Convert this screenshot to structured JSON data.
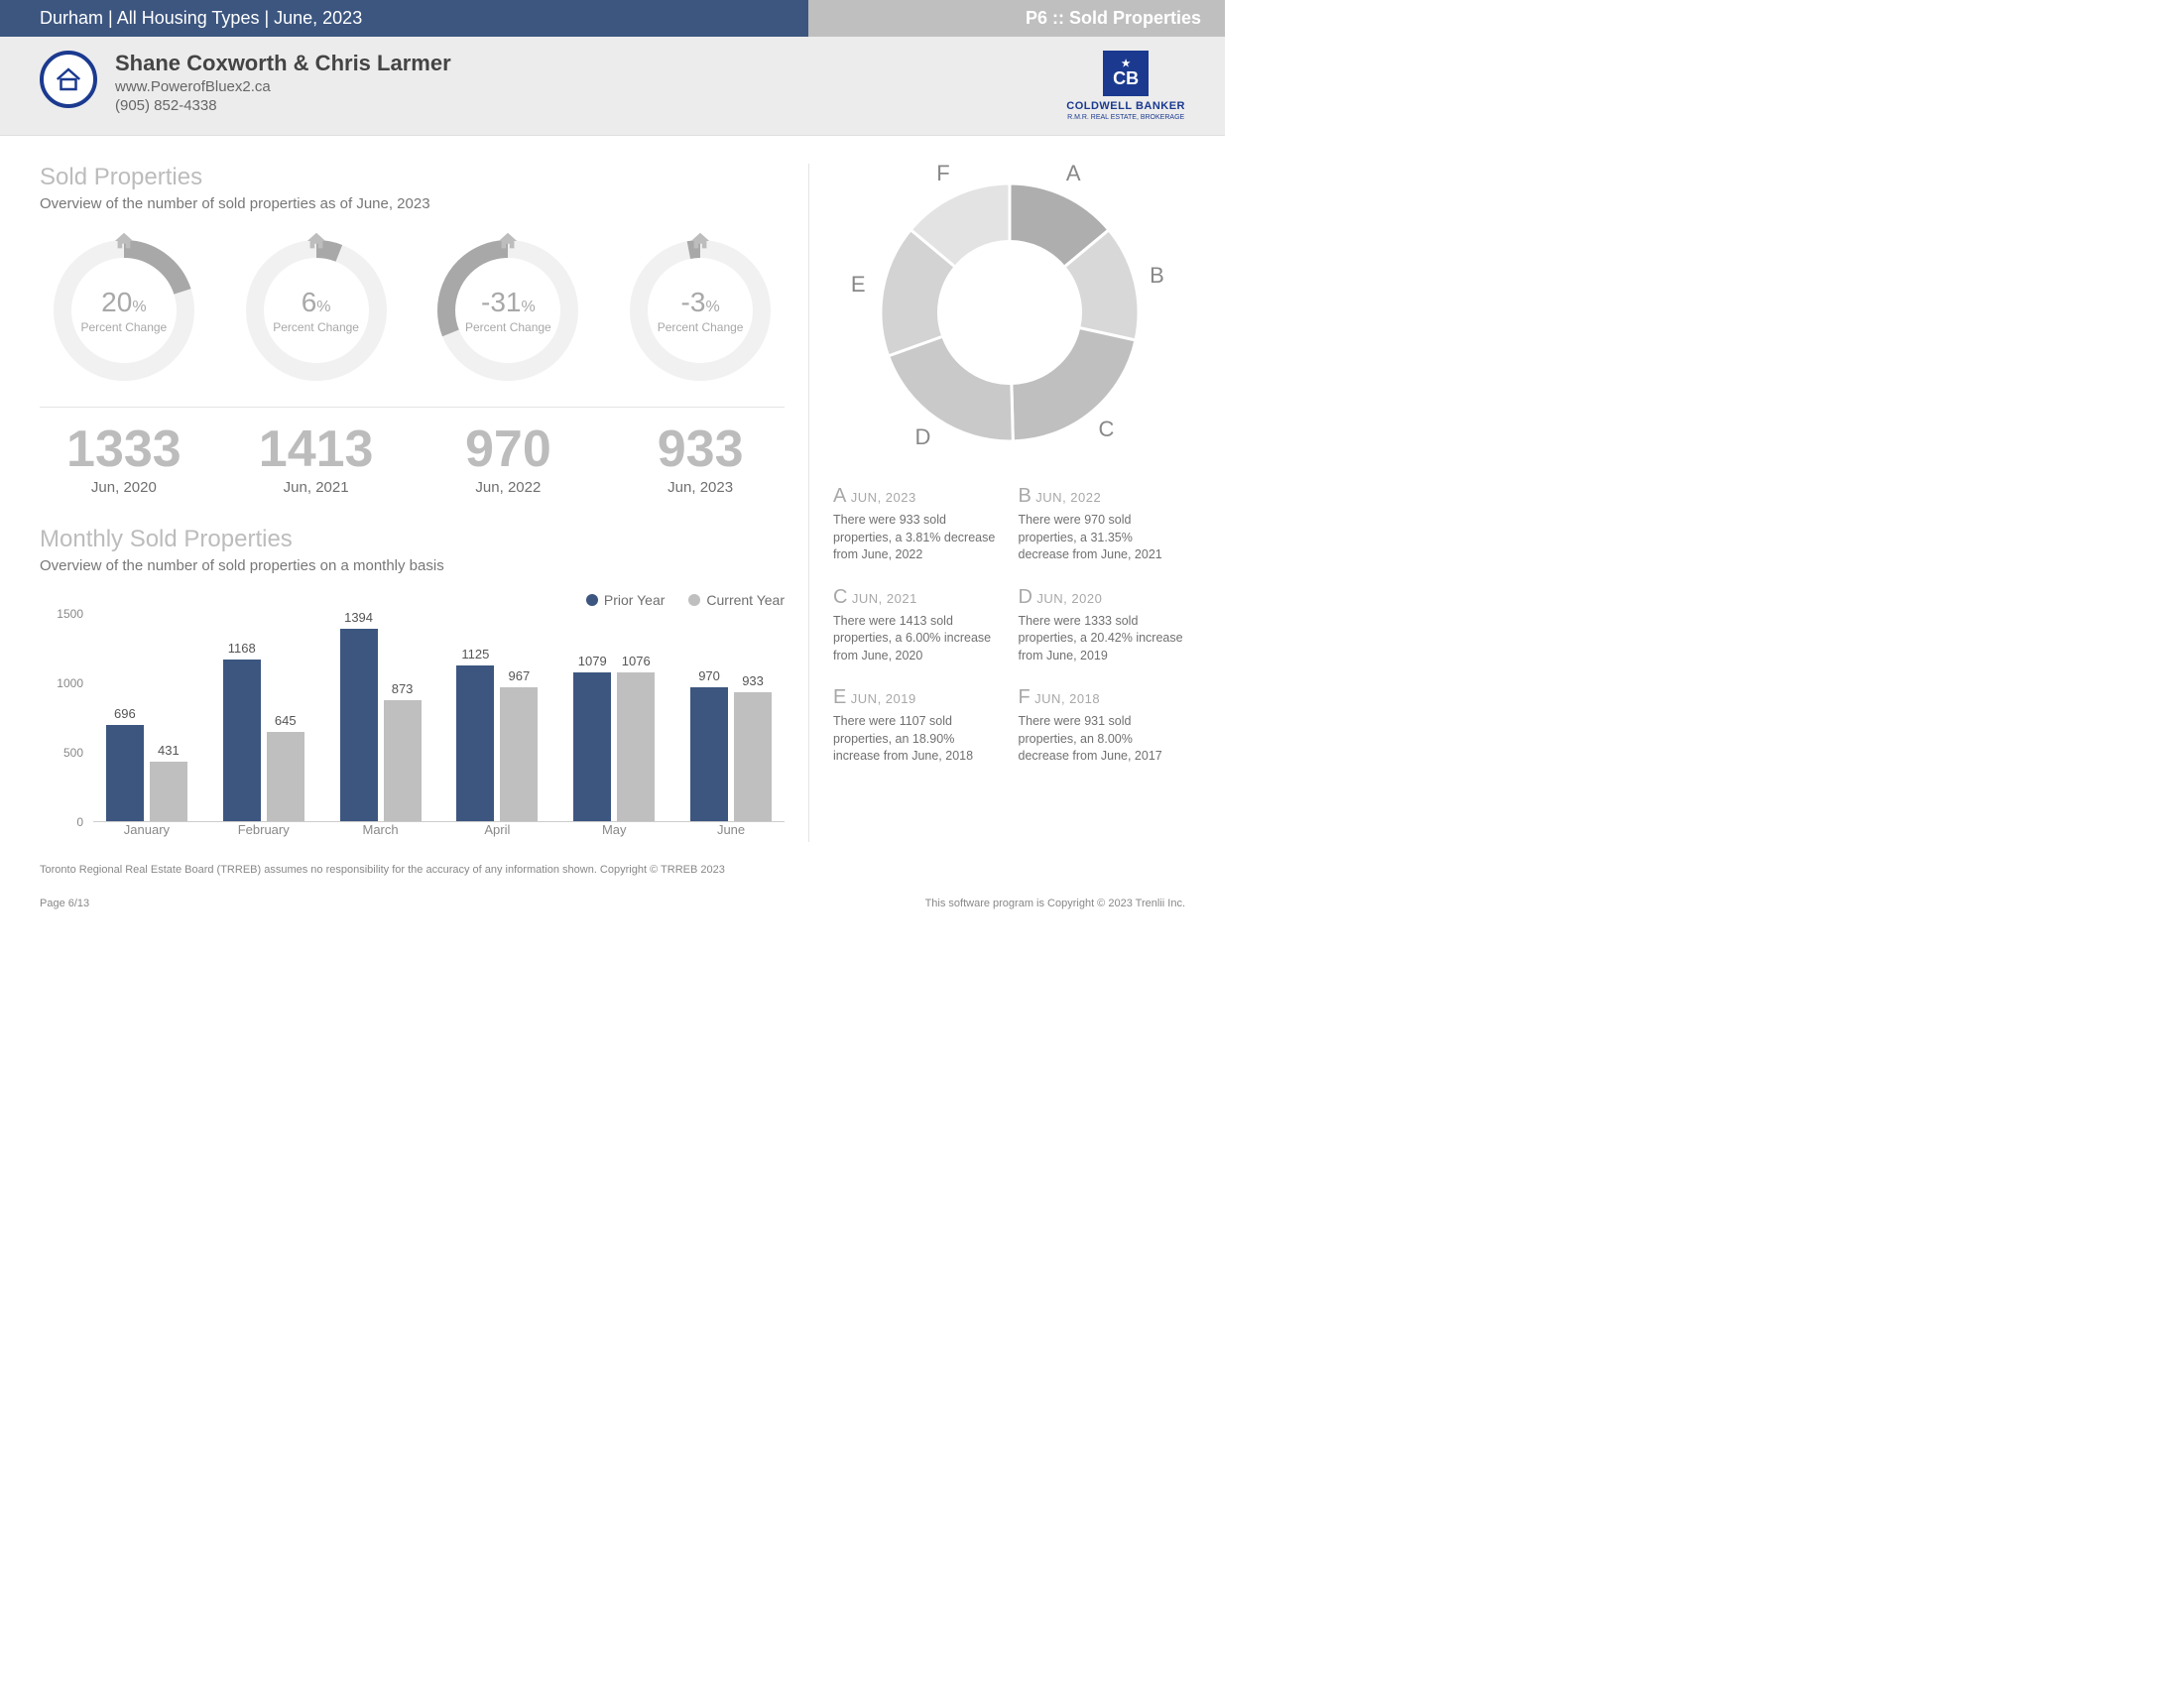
{
  "top": {
    "left": "Durham | All Housing Types | June, 2023",
    "right": "P6 :: Sold Properties"
  },
  "agent": {
    "name": "Shane Coxworth & Chris Larmer",
    "url": "www.PowerofBluex2.ca",
    "phone": "(905) 852-4338"
  },
  "brand": {
    "name": "COLDWELL BANKER",
    "sub": "R.M.R. REAL ESTATE, BROKERAGE"
  },
  "section1": {
    "title": "Sold Properties",
    "sub": "Overview of the number of sold properties as of June, 2023",
    "gauges": [
      {
        "pct": "20",
        "label": "Percent Change",
        "count": "1333",
        "date": "Jun, 2020",
        "frac": 0.2,
        "neg": false
      },
      {
        "pct": "6",
        "label": "Percent Change",
        "count": "1413",
        "date": "Jun, 2021",
        "frac": 0.06,
        "neg": false
      },
      {
        "pct": "-31",
        "label": "Percent Change",
        "count": "970",
        "date": "Jun, 2022",
        "frac": 0.31,
        "neg": true
      },
      {
        "pct": "-3",
        "label": "Percent Change",
        "count": "933",
        "date": "Jun, 2023",
        "frac": 0.03,
        "neg": true
      }
    ],
    "gauge_track": "#f1f1f1",
    "gauge_fill": "#a8a8a8"
  },
  "section2": {
    "title": "Monthly Sold Properties",
    "sub": "Overview of the number of sold properties on a monthly basis",
    "legend": {
      "prior": {
        "label": "Prior Year",
        "color": "#3c5680"
      },
      "current": {
        "label": "Current Year",
        "color": "#bfbfbf"
      }
    },
    "ymax": 1500,
    "yticks": [
      0,
      500,
      1000,
      1500
    ],
    "months": [
      "January",
      "February",
      "March",
      "April",
      "May",
      "June"
    ],
    "prior": [
      696,
      1168,
      1394,
      1125,
      1079,
      970
    ],
    "current": [
      431,
      645,
      873,
      967,
      1076,
      933
    ]
  },
  "donut": {
    "colors": {
      "A": "#aeaeae",
      "B": "#d8d8d8",
      "C": "#bfbfbf",
      "D": "#c9c9c9",
      "E": "#d3d3d3",
      "F": "#e3e3e3"
    },
    "slices": [
      {
        "letter": "A",
        "value": 933
      },
      {
        "letter": "B",
        "value": 970
      },
      {
        "letter": "C",
        "value": 1413
      },
      {
        "letter": "D",
        "value": 1333
      },
      {
        "letter": "E",
        "value": 1107
      },
      {
        "letter": "F",
        "value": 931
      }
    ],
    "hole": 0.55,
    "divider": "#ffffff"
  },
  "yearGrid": [
    {
      "letter": "A",
      "date": "JUN, 2023",
      "body": "There were 933 sold properties, a 3.81% decrease from June, 2022"
    },
    {
      "letter": "B",
      "date": "JUN, 2022",
      "body": "There were 970 sold properties, a 31.35% decrease from June, 2021"
    },
    {
      "letter": "C",
      "date": "JUN, 2021",
      "body": "There were 1413 sold properties, a 6.00% increase from June, 2020"
    },
    {
      "letter": "D",
      "date": "JUN, 2020",
      "body": "There were 1333 sold properties, a 20.42% increase from June, 2019"
    },
    {
      "letter": "E",
      "date": "JUN, 2019",
      "body": "There were 1107 sold properties, an 18.90% increase from June, 2018"
    },
    {
      "letter": "F",
      "date": "JUN, 2018",
      "body": "There were 931 sold properties, an 8.00% decrease from June, 2017"
    }
  ],
  "footer": {
    "disclaimer": "Toronto Regional Real Estate Board (TRREB) assumes no responsibility for the accuracy of any information shown. Copyright © TRREB 2023",
    "page": "Page 6/13",
    "soft": "This software program is Copyright © 2023 Trenlii Inc."
  }
}
